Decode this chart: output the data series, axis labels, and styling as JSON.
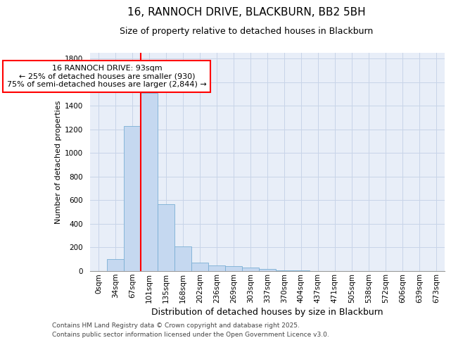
{
  "title_line1": "16, RANNOCH DRIVE, BLACKBURN, BB2 5BH",
  "title_line2": "Size of property relative to detached houses in Blackburn",
  "xlabel": "Distribution of detached houses by size in Blackburn",
  "ylabel": "Number of detached properties",
  "bar_labels": [
    "0sqm",
    "34sqm",
    "67sqm",
    "101sqm",
    "135sqm",
    "168sqm",
    "202sqm",
    "236sqm",
    "269sqm",
    "303sqm",
    "337sqm",
    "370sqm",
    "404sqm",
    "437sqm",
    "471sqm",
    "505sqm",
    "538sqm",
    "572sqm",
    "606sqm",
    "639sqm",
    "673sqm"
  ],
  "bar_values": [
    0,
    100,
    1230,
    1510,
    565,
    210,
    70,
    50,
    40,
    30,
    20,
    5,
    3,
    1,
    1,
    0,
    0,
    0,
    0,
    0,
    0
  ],
  "bar_color": "#c5d8f0",
  "bar_edge_color": "#7aafd4",
  "ylim": [
    0,
    1850
  ],
  "yticks": [
    0,
    200,
    400,
    600,
    800,
    1000,
    1200,
    1400,
    1600,
    1800
  ],
  "property_size_label": "16 RANNOCH DRIVE: 93sqm",
  "annotation_line1": "← 25% of detached houses are smaller (930)",
  "annotation_line2": "75% of semi-detached houses are larger (2,844) →",
  "vline_x_index": 2.5,
  "grid_color": "#c8d4e8",
  "background_color": "#e8eef8",
  "footer_line1": "Contains HM Land Registry data © Crown copyright and database right 2025.",
  "footer_line2": "Contains public sector information licensed under the Open Government Licence v3.0.",
  "title_fontsize": 11,
  "subtitle_fontsize": 9,
  "ylabel_fontsize": 8,
  "xlabel_fontsize": 9,
  "tick_fontsize": 7.5,
  "annot_fontsize": 8,
  "footer_fontsize": 6.5
}
